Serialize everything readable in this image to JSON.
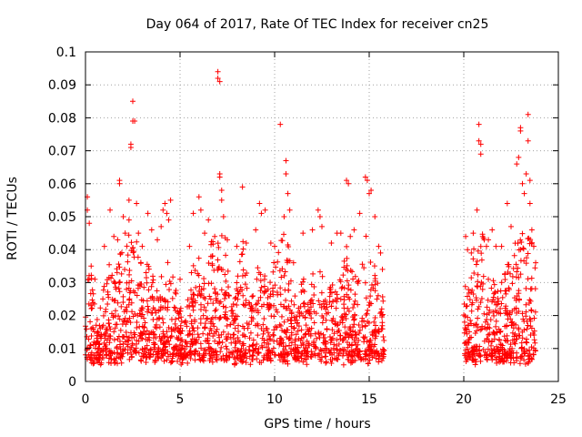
{
  "chart_data": {
    "type": "scatter",
    "title": "Day 064 of 2017, Rate Of TEC Index for receiver cn25",
    "xlabel": "GPS time / hours",
    "ylabel": "ROTI / TECUs",
    "xlim": [
      0,
      25
    ],
    "ylim": [
      0,
      0.1
    ],
    "x_ticks": [
      0,
      5,
      10,
      15,
      20,
      25
    ],
    "y_ticks": [
      0,
      0.01,
      0.02,
      0.03,
      0.04,
      0.05,
      0.06,
      0.07,
      0.08,
      0.09,
      0.1
    ],
    "x_tick_labels": [
      "0",
      "5",
      "10",
      "15",
      "20",
      "25"
    ],
    "y_tick_labels": [
      "0",
      "0.01",
      "0.02",
      "0.03",
      "0.04",
      "0.05",
      "0.06",
      "0.07",
      "0.08",
      "0.09",
      "0.1"
    ],
    "grid": true,
    "marker": "+",
    "color": "#ff0000",
    "data_gap_hours": [
      15.8,
      20.0
    ],
    "series": [
      {
        "name": "ROTI",
        "points": [
          [
            0.1,
            0.056
          ],
          [
            0.1,
            0.052
          ],
          [
            0.2,
            0.048
          ],
          [
            0.3,
            0.035
          ],
          [
            0.5,
            0.031
          ],
          [
            1.0,
            0.041
          ],
          [
            1.3,
            0.052
          ],
          [
            1.5,
            0.044
          ],
          [
            1.7,
            0.043
          ],
          [
            1.8,
            0.061
          ],
          [
            1.8,
            0.06
          ],
          [
            2.0,
            0.05
          ],
          [
            2.1,
            0.045
          ],
          [
            2.3,
            0.049
          ],
          [
            2.3,
            0.055
          ],
          [
            2.4,
            0.071
          ],
          [
            2.4,
            0.072
          ],
          [
            2.5,
            0.079
          ],
          [
            2.5,
            0.085
          ],
          [
            2.6,
            0.079
          ],
          [
            2.7,
            0.054
          ],
          [
            2.8,
            0.045
          ],
          [
            3.0,
            0.041
          ],
          [
            3.3,
            0.051
          ],
          [
            3.5,
            0.046
          ],
          [
            3.8,
            0.043
          ],
          [
            4.0,
            0.047
          ],
          [
            4.1,
            0.052
          ],
          [
            4.2,
            0.054
          ],
          [
            4.3,
            0.051
          ],
          [
            4.4,
            0.049
          ],
          [
            4.5,
            0.055
          ],
          [
            5.0,
            0.031
          ],
          [
            5.5,
            0.041
          ],
          [
            5.7,
            0.051
          ],
          [
            6.0,
            0.056
          ],
          [
            6.1,
            0.052
          ],
          [
            6.3,
            0.045
          ],
          [
            6.5,
            0.049
          ],
          [
            6.7,
            0.038
          ],
          [
            7.0,
            0.094
          ],
          [
            7.0,
            0.092
          ],
          [
            7.1,
            0.091
          ],
          [
            7.1,
            0.063
          ],
          [
            7.1,
            0.062
          ],
          [
            7.2,
            0.058
          ],
          [
            7.2,
            0.055
          ],
          [
            7.3,
            0.05
          ],
          [
            7.5,
            0.043
          ],
          [
            8.0,
            0.041
          ],
          [
            8.3,
            0.059
          ],
          [
            8.5,
            0.042
          ],
          [
            9.0,
            0.046
          ],
          [
            9.2,
            0.054
          ],
          [
            9.3,
            0.051
          ],
          [
            9.5,
            0.052
          ],
          [
            9.8,
            0.042
          ],
          [
            10.0,
            0.041
          ],
          [
            10.3,
            0.078
          ],
          [
            10.5,
            0.05
          ],
          [
            10.6,
            0.067
          ],
          [
            10.6,
            0.063
          ],
          [
            10.7,
            0.057
          ],
          [
            10.8,
            0.052
          ],
          [
            11.0,
            0.036
          ],
          [
            11.5,
            0.045
          ],
          [
            12.0,
            0.046
          ],
          [
            12.3,
            0.052
          ],
          [
            12.4,
            0.05
          ],
          [
            12.5,
            0.047
          ],
          [
            13.0,
            0.042
          ],
          [
            13.3,
            0.045
          ],
          [
            13.5,
            0.045
          ],
          [
            13.8,
            0.061
          ],
          [
            13.9,
            0.06
          ],
          [
            14.0,
            0.044
          ],
          [
            14.2,
            0.046
          ],
          [
            14.5,
            0.051
          ],
          [
            14.8,
            0.062
          ],
          [
            14.9,
            0.061
          ],
          [
            15.0,
            0.057
          ],
          [
            15.1,
            0.058
          ],
          [
            15.3,
            0.05
          ],
          [
            15.5,
            0.041
          ],
          [
            15.6,
            0.039
          ],
          [
            15.7,
            0.034
          ],
          [
            20.1,
            0.044
          ],
          [
            20.2,
            0.04
          ],
          [
            20.4,
            0.039
          ],
          [
            20.5,
            0.045
          ],
          [
            20.7,
            0.052
          ],
          [
            20.8,
            0.078
          ],
          [
            20.8,
            0.073
          ],
          [
            20.9,
            0.072
          ],
          [
            20.9,
            0.069
          ],
          [
            21.0,
            0.044
          ],
          [
            21.2,
            0.041
          ],
          [
            21.3,
            0.043
          ],
          [
            21.5,
            0.046
          ],
          [
            21.7,
            0.041
          ],
          [
            22.0,
            0.041
          ],
          [
            22.3,
            0.054
          ],
          [
            22.5,
            0.047
          ],
          [
            22.8,
            0.066
          ],
          [
            22.9,
            0.068
          ],
          [
            23.0,
            0.076
          ],
          [
            23.0,
            0.077
          ],
          [
            23.1,
            0.06
          ],
          [
            23.2,
            0.057
          ],
          [
            23.3,
            0.063
          ],
          [
            23.4,
            0.081
          ],
          [
            23.4,
            0.073
          ],
          [
            23.5,
            0.061
          ],
          [
            23.5,
            0.054
          ],
          [
            23.6,
            0.046
          ],
          [
            23.7,
            0.041
          ],
          [
            23.8,
            0.036
          ]
        ]
      }
    ]
  }
}
